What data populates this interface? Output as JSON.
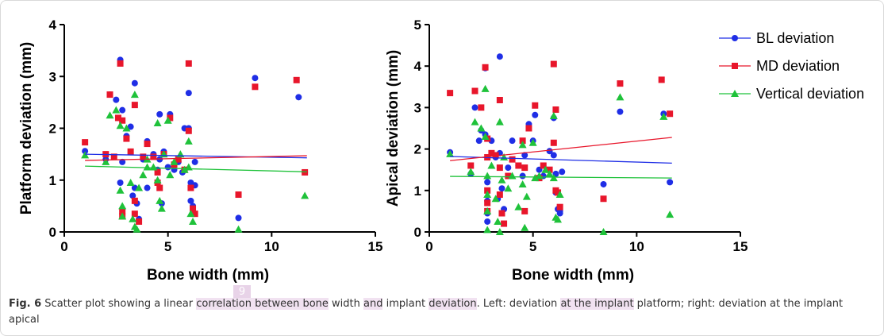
{
  "page_marker": "9",
  "caption": {
    "figure_label": "Fig. 6",
    "segments": [
      {
        "text": " Scatter plot showing a linear ",
        "hl": false
      },
      {
        "text": "correlation between bone",
        "hl": true
      },
      {
        "text": " width ",
        "hl": false
      },
      {
        "text": "and",
        "hl": true
      },
      {
        "text": " implant ",
        "hl": false
      },
      {
        "text": "deviation",
        "hl": true
      },
      {
        "text": ". Left: deviation ",
        "hl": false
      },
      {
        "text": "at the implant",
        "hl": true
      },
      {
        "text": " platform; right: deviation at the implant apical",
        "hl": false
      }
    ]
  },
  "legend": [
    {
      "name": "BL deviation",
      "color": "#1f2ee6",
      "marker": "circle"
    },
    {
      "name": "MD deviation",
      "color": "#e8162b",
      "marker": "square"
    },
    {
      "name": "Vertical deviation",
      "color": "#1fc23a",
      "marker": "triangle"
    }
  ],
  "chart_data": [
    {
      "type": "scatter",
      "xlabel": "Bone width (mm)",
      "ylabel": "Platform deviation (mm)",
      "xlim": [
        0,
        15
      ],
      "ylim": [
        0,
        4
      ],
      "xticks": [
        0,
        5,
        10,
        15
      ],
      "yticks": [
        0,
        1,
        2,
        3,
        4
      ],
      "series": [
        {
          "name": "BL deviation",
          "points": [
            [
              1.0,
              1.56
            ],
            [
              2.0,
              1.4
            ],
            [
              2.2,
              2.65
            ],
            [
              2.5,
              2.55
            ],
            [
              2.7,
              3.32
            ],
            [
              2.7,
              0.95
            ],
            [
              2.8,
              2.35
            ],
            [
              2.8,
              1.35
            ],
            [
              3.0,
              1.85
            ],
            [
              3.2,
              2.03
            ],
            [
              3.3,
              0.7
            ],
            [
              3.4,
              2.87
            ],
            [
              3.4,
              0.85
            ],
            [
              3.5,
              0.55
            ],
            [
              3.6,
              0.25
            ],
            [
              3.8,
              1.4
            ],
            [
              4.0,
              1.75
            ],
            [
              4.0,
              0.85
            ],
            [
              4.3,
              1.5
            ],
            [
              4.5,
              1.2
            ],
            [
              4.6,
              2.27
            ],
            [
              4.6,
              1.4
            ],
            [
              4.7,
              0.55
            ],
            [
              4.8,
              1.55
            ],
            [
              5.0,
              1.25
            ],
            [
              5.1,
              2.27
            ],
            [
              5.3,
              1.2
            ],
            [
              5.5,
              1.35
            ],
            [
              5.7,
              1.15
            ],
            [
              5.8,
              2.0
            ],
            [
              6.0,
              2.68
            ],
            [
              6.0,
              2.0
            ],
            [
              6.1,
              0.95
            ],
            [
              6.1,
              0.6
            ],
            [
              6.2,
              0.5
            ],
            [
              6.3,
              1.35
            ],
            [
              6.3,
              0.9
            ],
            [
              8.4,
              0.27
            ],
            [
              9.2,
              2.97
            ],
            [
              11.3,
              2.6
            ],
            [
              11.6,
              1.15
            ]
          ]
        },
        {
          "name": "MD deviation",
          "points": [
            [
              1.0,
              1.73
            ],
            [
              2.0,
              1.5
            ],
            [
              2.2,
              2.65
            ],
            [
              2.4,
              1.45
            ],
            [
              2.6,
              2.2
            ],
            [
              2.7,
              3.25
            ],
            [
              2.8,
              2.15
            ],
            [
              2.8,
              0.4
            ],
            [
              2.8,
              0.3
            ],
            [
              3.0,
              1.8
            ],
            [
              3.2,
              1.55
            ],
            [
              3.4,
              2.45
            ],
            [
              3.4,
              0.6
            ],
            [
              3.4,
              0.35
            ],
            [
              3.6,
              0.2
            ],
            [
              3.8,
              1.45
            ],
            [
              4.0,
              1.7
            ],
            [
              4.3,
              1.45
            ],
            [
              4.5,
              1.15
            ],
            [
              4.5,
              0.95
            ],
            [
              4.6,
              0.85
            ],
            [
              4.8,
              1.5
            ],
            [
              5.1,
              2.2
            ],
            [
              5.3,
              1.3
            ],
            [
              5.5,
              1.4
            ],
            [
              5.8,
              1.2
            ],
            [
              6.0,
              3.25
            ],
            [
              6.0,
              1.95
            ],
            [
              6.1,
              0.85
            ],
            [
              6.2,
              0.45
            ],
            [
              6.3,
              0.35
            ],
            [
              8.4,
              0.72
            ],
            [
              9.2,
              2.8
            ],
            [
              11.2,
              2.93
            ],
            [
              11.6,
              1.15
            ]
          ]
        },
        {
          "name": "Vertical deviation",
          "points": [
            [
              1.0,
              1.48
            ],
            [
              2.0,
              1.35
            ],
            [
              2.2,
              2.25
            ],
            [
              2.5,
              2.35
            ],
            [
              2.7,
              2.05
            ],
            [
              2.7,
              0.8
            ],
            [
              2.8,
              0.5
            ],
            [
              2.8,
              0.3
            ],
            [
              3.0,
              2.0
            ],
            [
              3.2,
              0.95
            ],
            [
              3.3,
              0.25
            ],
            [
              3.4,
              2.65
            ],
            [
              3.4,
              0.1
            ],
            [
              3.5,
              0.05
            ],
            [
              3.6,
              0.85
            ],
            [
              3.8,
              1.1
            ],
            [
              4.0,
              1.4
            ],
            [
              4.0,
              1.25
            ],
            [
              4.3,
              1.25
            ],
            [
              4.5,
              1.0
            ],
            [
              4.5,
              2.1
            ],
            [
              4.6,
              0.6
            ],
            [
              4.7,
              0.45
            ],
            [
              4.8,
              1.5
            ],
            [
              5.0,
              2.15
            ],
            [
              5.1,
              1.1
            ],
            [
              5.3,
              1.35
            ],
            [
              5.6,
              1.5
            ],
            [
              5.8,
              1.2
            ],
            [
              6.0,
              1.75
            ],
            [
              6.0,
              1.25
            ],
            [
              6.1,
              0.35
            ],
            [
              6.2,
              0.2
            ],
            [
              8.4,
              0.05
            ],
            [
              11.6,
              0.7
            ]
          ]
        }
      ],
      "trendlines": [
        {
          "name": "BL deviation",
          "x": [
            1,
            11.7
          ],
          "y": [
            1.5,
            1.43
          ]
        },
        {
          "name": "MD deviation",
          "x": [
            1,
            11.7
          ],
          "y": [
            1.38,
            1.47
          ]
        },
        {
          "name": "Vertical deviation",
          "x": [
            1,
            11.7
          ],
          "y": [
            1.27,
            1.16
          ]
        }
      ]
    },
    {
      "type": "scatter",
      "xlabel": "Bone width (mm)",
      "ylabel": "Apical deviation (mm)",
      "xlim": [
        0,
        15
      ],
      "ylim": [
        0,
        5
      ],
      "xticks": [
        0,
        5,
        10,
        15
      ],
      "yticks": [
        0,
        1,
        2,
        3,
        4,
        5
      ],
      "series": [
        {
          "name": "BL deviation",
          "points": [
            [
              1.0,
              1.92
            ],
            [
              2.0,
              1.4
            ],
            [
              2.2,
              3.0
            ],
            [
              2.4,
              2.2
            ],
            [
              2.5,
              2.45
            ],
            [
              2.7,
              3.95
            ],
            [
              2.7,
              2.35
            ],
            [
              2.8,
              1.2
            ],
            [
              2.8,
              0.75
            ],
            [
              2.8,
              0.45
            ],
            [
              2.8,
              0.25
            ],
            [
              3.0,
              2.2
            ],
            [
              3.2,
              1.8
            ],
            [
              3.3,
              0.8
            ],
            [
              3.4,
              4.23
            ],
            [
              3.4,
              1.9
            ],
            [
              3.5,
              1.05
            ],
            [
              3.6,
              0.55
            ],
            [
              3.8,
              1.55
            ],
            [
              4.0,
              2.2
            ],
            [
              4.3,
              1.6
            ],
            [
              4.5,
              1.35
            ],
            [
              4.6,
              1.85
            ],
            [
              4.8,
              2.6
            ],
            [
              5.0,
              2.2
            ],
            [
              5.1,
              2.82
            ],
            [
              5.3,
              1.5
            ],
            [
              5.5,
              1.35
            ],
            [
              5.8,
              1.95
            ],
            [
              6.0,
              2.75
            ],
            [
              6.0,
              1.85
            ],
            [
              6.1,
              1.4
            ],
            [
              6.1,
              0.95
            ],
            [
              6.2,
              0.55
            ],
            [
              6.3,
              0.5
            ],
            [
              6.3,
              0.45
            ],
            [
              6.4,
              1.45
            ],
            [
              8.4,
              1.15
            ],
            [
              9.2,
              2.9
            ],
            [
              11.3,
              2.85
            ],
            [
              11.6,
              1.2
            ]
          ]
        },
        {
          "name": "MD deviation",
          "points": [
            [
              1.0,
              3.35
            ],
            [
              2.0,
              1.6
            ],
            [
              2.2,
              3.4
            ],
            [
              2.5,
              3.0
            ],
            [
              2.7,
              3.97
            ],
            [
              2.8,
              2.25
            ],
            [
              2.8,
              1.8
            ],
            [
              2.8,
              1.0
            ],
            [
              2.8,
              0.7
            ],
            [
              2.8,
              0.5
            ],
            [
              3.0,
              1.9
            ],
            [
              3.2,
              1.85
            ],
            [
              3.4,
              3.18
            ],
            [
              3.4,
              1.55
            ],
            [
              3.4,
              0.9
            ],
            [
              3.5,
              0.45
            ],
            [
              3.6,
              0.2
            ],
            [
              3.8,
              1.35
            ],
            [
              4.0,
              1.75
            ],
            [
              4.3,
              1.6
            ],
            [
              4.5,
              2.2
            ],
            [
              4.6,
              1.55
            ],
            [
              4.6,
              0.5
            ],
            [
              4.8,
              2.5
            ],
            [
              5.1,
              3.05
            ],
            [
              5.3,
              1.3
            ],
            [
              5.5,
              1.6
            ],
            [
              5.8,
              1.5
            ],
            [
              6.0,
              4.05
            ],
            [
              6.0,
              2.15
            ],
            [
              6.1,
              2.95
            ],
            [
              6.1,
              1.0
            ],
            [
              6.2,
              0.95
            ],
            [
              6.3,
              0.6
            ],
            [
              8.4,
              0.8
            ],
            [
              9.2,
              3.58
            ],
            [
              11.2,
              3.67
            ],
            [
              11.6,
              2.85
            ]
          ]
        },
        {
          "name": "Vertical deviation",
          "points": [
            [
              1.0,
              1.88
            ],
            [
              2.0,
              1.45
            ],
            [
              2.2,
              2.65
            ],
            [
              2.5,
              2.5
            ],
            [
              2.7,
              3.45
            ],
            [
              2.7,
              2.3
            ],
            [
              2.8,
              1.35
            ],
            [
              2.8,
              0.9
            ],
            [
              2.8,
              0.5
            ],
            [
              2.8,
              0.05
            ],
            [
              3.0,
              1.6
            ],
            [
              3.2,
              0.8
            ],
            [
              3.3,
              0.25
            ],
            [
              3.4,
              2.65
            ],
            [
              3.4,
              0.0
            ],
            [
              3.5,
              1.25
            ],
            [
              3.6,
              1.8
            ],
            [
              3.8,
              1.05
            ],
            [
              4.0,
              1.35
            ],
            [
              4.3,
              0.6
            ],
            [
              4.5,
              1.15
            ],
            [
              4.5,
              2.1
            ],
            [
              4.6,
              0.1
            ],
            [
              4.7,
              0.85
            ],
            [
              5.0,
              2.15
            ],
            [
              5.1,
              1.3
            ],
            [
              5.3,
              1.35
            ],
            [
              5.6,
              1.5
            ],
            [
              5.8,
              1.4
            ],
            [
              6.0,
              2.8
            ],
            [
              6.0,
              1.3
            ],
            [
              6.1,
              0.35
            ],
            [
              6.2,
              0.3
            ],
            [
              6.3,
              0.9
            ],
            [
              8.4,
              0.0
            ],
            [
              9.2,
              3.25
            ],
            [
              11.3,
              2.78
            ],
            [
              11.6,
              0.42
            ]
          ]
        }
      ],
      "trendlines": [
        {
          "name": "BL deviation",
          "x": [
            1,
            11.7
          ],
          "y": [
            1.82,
            1.66
          ]
        },
        {
          "name": "MD deviation",
          "x": [
            1,
            11.7
          ],
          "y": [
            1.72,
            2.28
          ]
        },
        {
          "name": "Vertical deviation",
          "x": [
            1,
            11.7
          ],
          "y": [
            1.34,
            1.3
          ]
        }
      ]
    }
  ]
}
